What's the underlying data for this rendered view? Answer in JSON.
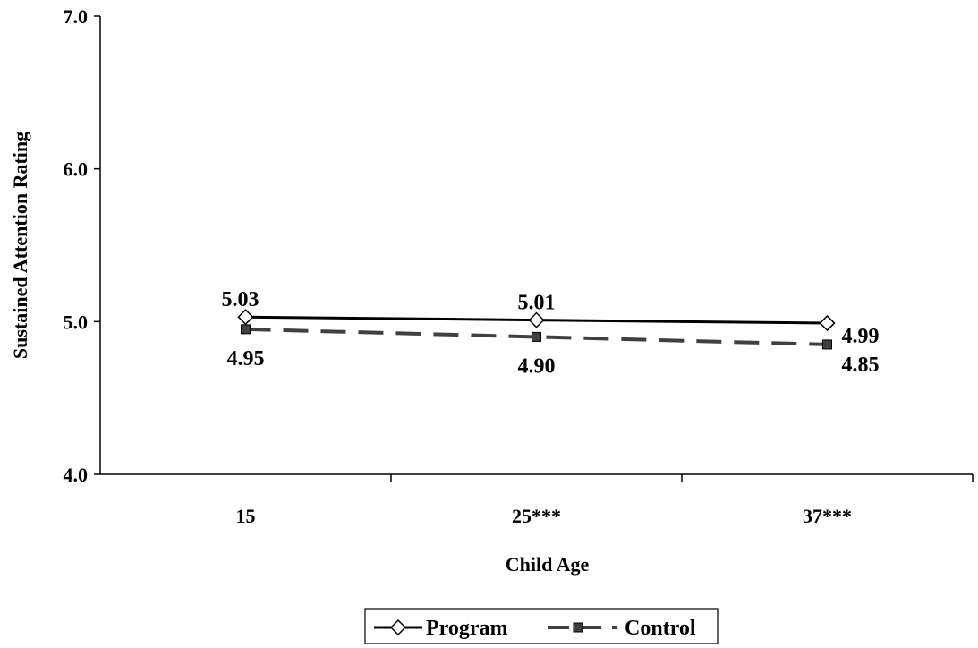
{
  "chart_data": {
    "type": "line",
    "categories": [
      "15",
      "25***",
      "37***"
    ],
    "series": [
      {
        "name": "Program",
        "values": [
          5.03,
          5.01,
          4.99
        ],
        "labels": [
          "5.03",
          "5.01",
          "4.99"
        ],
        "color": "#000000",
        "style": "solid",
        "marker": "diamond"
      },
      {
        "name": "Control",
        "values": [
          4.95,
          4.9,
          4.85
        ],
        "labels": [
          "4.95",
          "4.90",
          "4.85"
        ],
        "color": "#404040",
        "style": "dashed",
        "marker": "square"
      }
    ],
    "xlabel": "Child Age",
    "ylabel": "Sustained Attention Rating",
    "ylim": [
      4.0,
      7.0
    ],
    "yticks": [
      "4.0",
      "5.0",
      "6.0",
      "7.0"
    ],
    "grid": false,
    "legend": "bottom"
  }
}
